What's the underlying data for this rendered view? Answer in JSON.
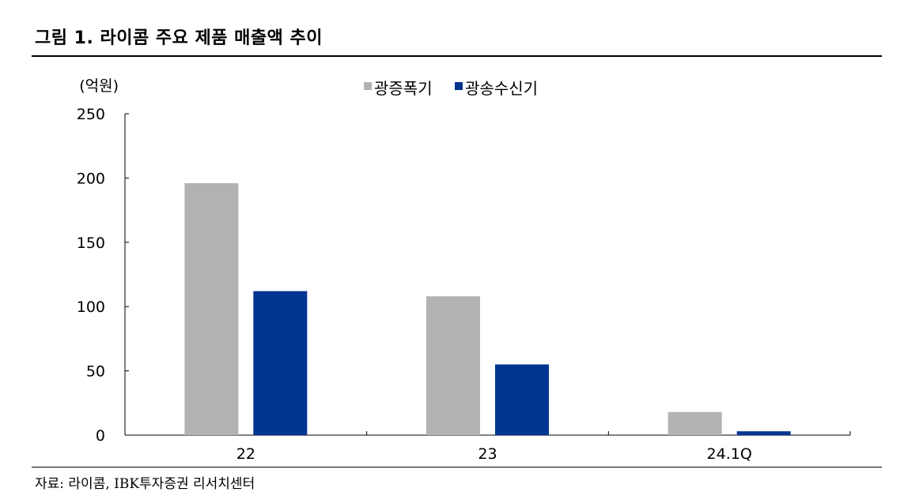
{
  "figure_title": "그림 1. 라이콤 주요 제품 매출액 추이",
  "source_note": "자료: 라이콤, IBK투자증권 리서치센터",
  "chart_data": {
    "type": "bar",
    "unit_label": "(억원)",
    "categories": [
      "22",
      "23",
      "24.1Q"
    ],
    "series": [
      {
        "name": "광증폭기",
        "color": "#b2b2b2",
        "values": [
          196,
          108,
          18
        ]
      },
      {
        "name": "광송수신기",
        "color": "#003591",
        "values": [
          112,
          55,
          3
        ]
      }
    ],
    "ylim": [
      0,
      250
    ],
    "yticks": [
      0,
      50,
      100,
      150,
      200,
      250
    ],
    "legend_position": "top-center",
    "grid": false
  }
}
